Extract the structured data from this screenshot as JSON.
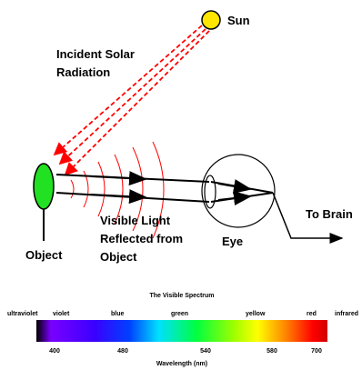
{
  "labels": {
    "sun": "Sun",
    "incident": [
      "Incident Solar",
      "Radiation"
    ],
    "object": "Object",
    "reflected": [
      "Visible Light",
      "Reflected from",
      "Object"
    ],
    "eye": "Eye",
    "brain": "To Brain"
  },
  "spectrum": {
    "title": "The Visible Spectrum",
    "colors": [
      "ultraviolet",
      "violet",
      "blue",
      "green",
      "yellow",
      "red",
      "infrared"
    ],
    "wavelengths": [
      "400",
      "480",
      "540",
      "580",
      "700"
    ],
    "axis_label": "Wavelength (nm)"
  }
}
